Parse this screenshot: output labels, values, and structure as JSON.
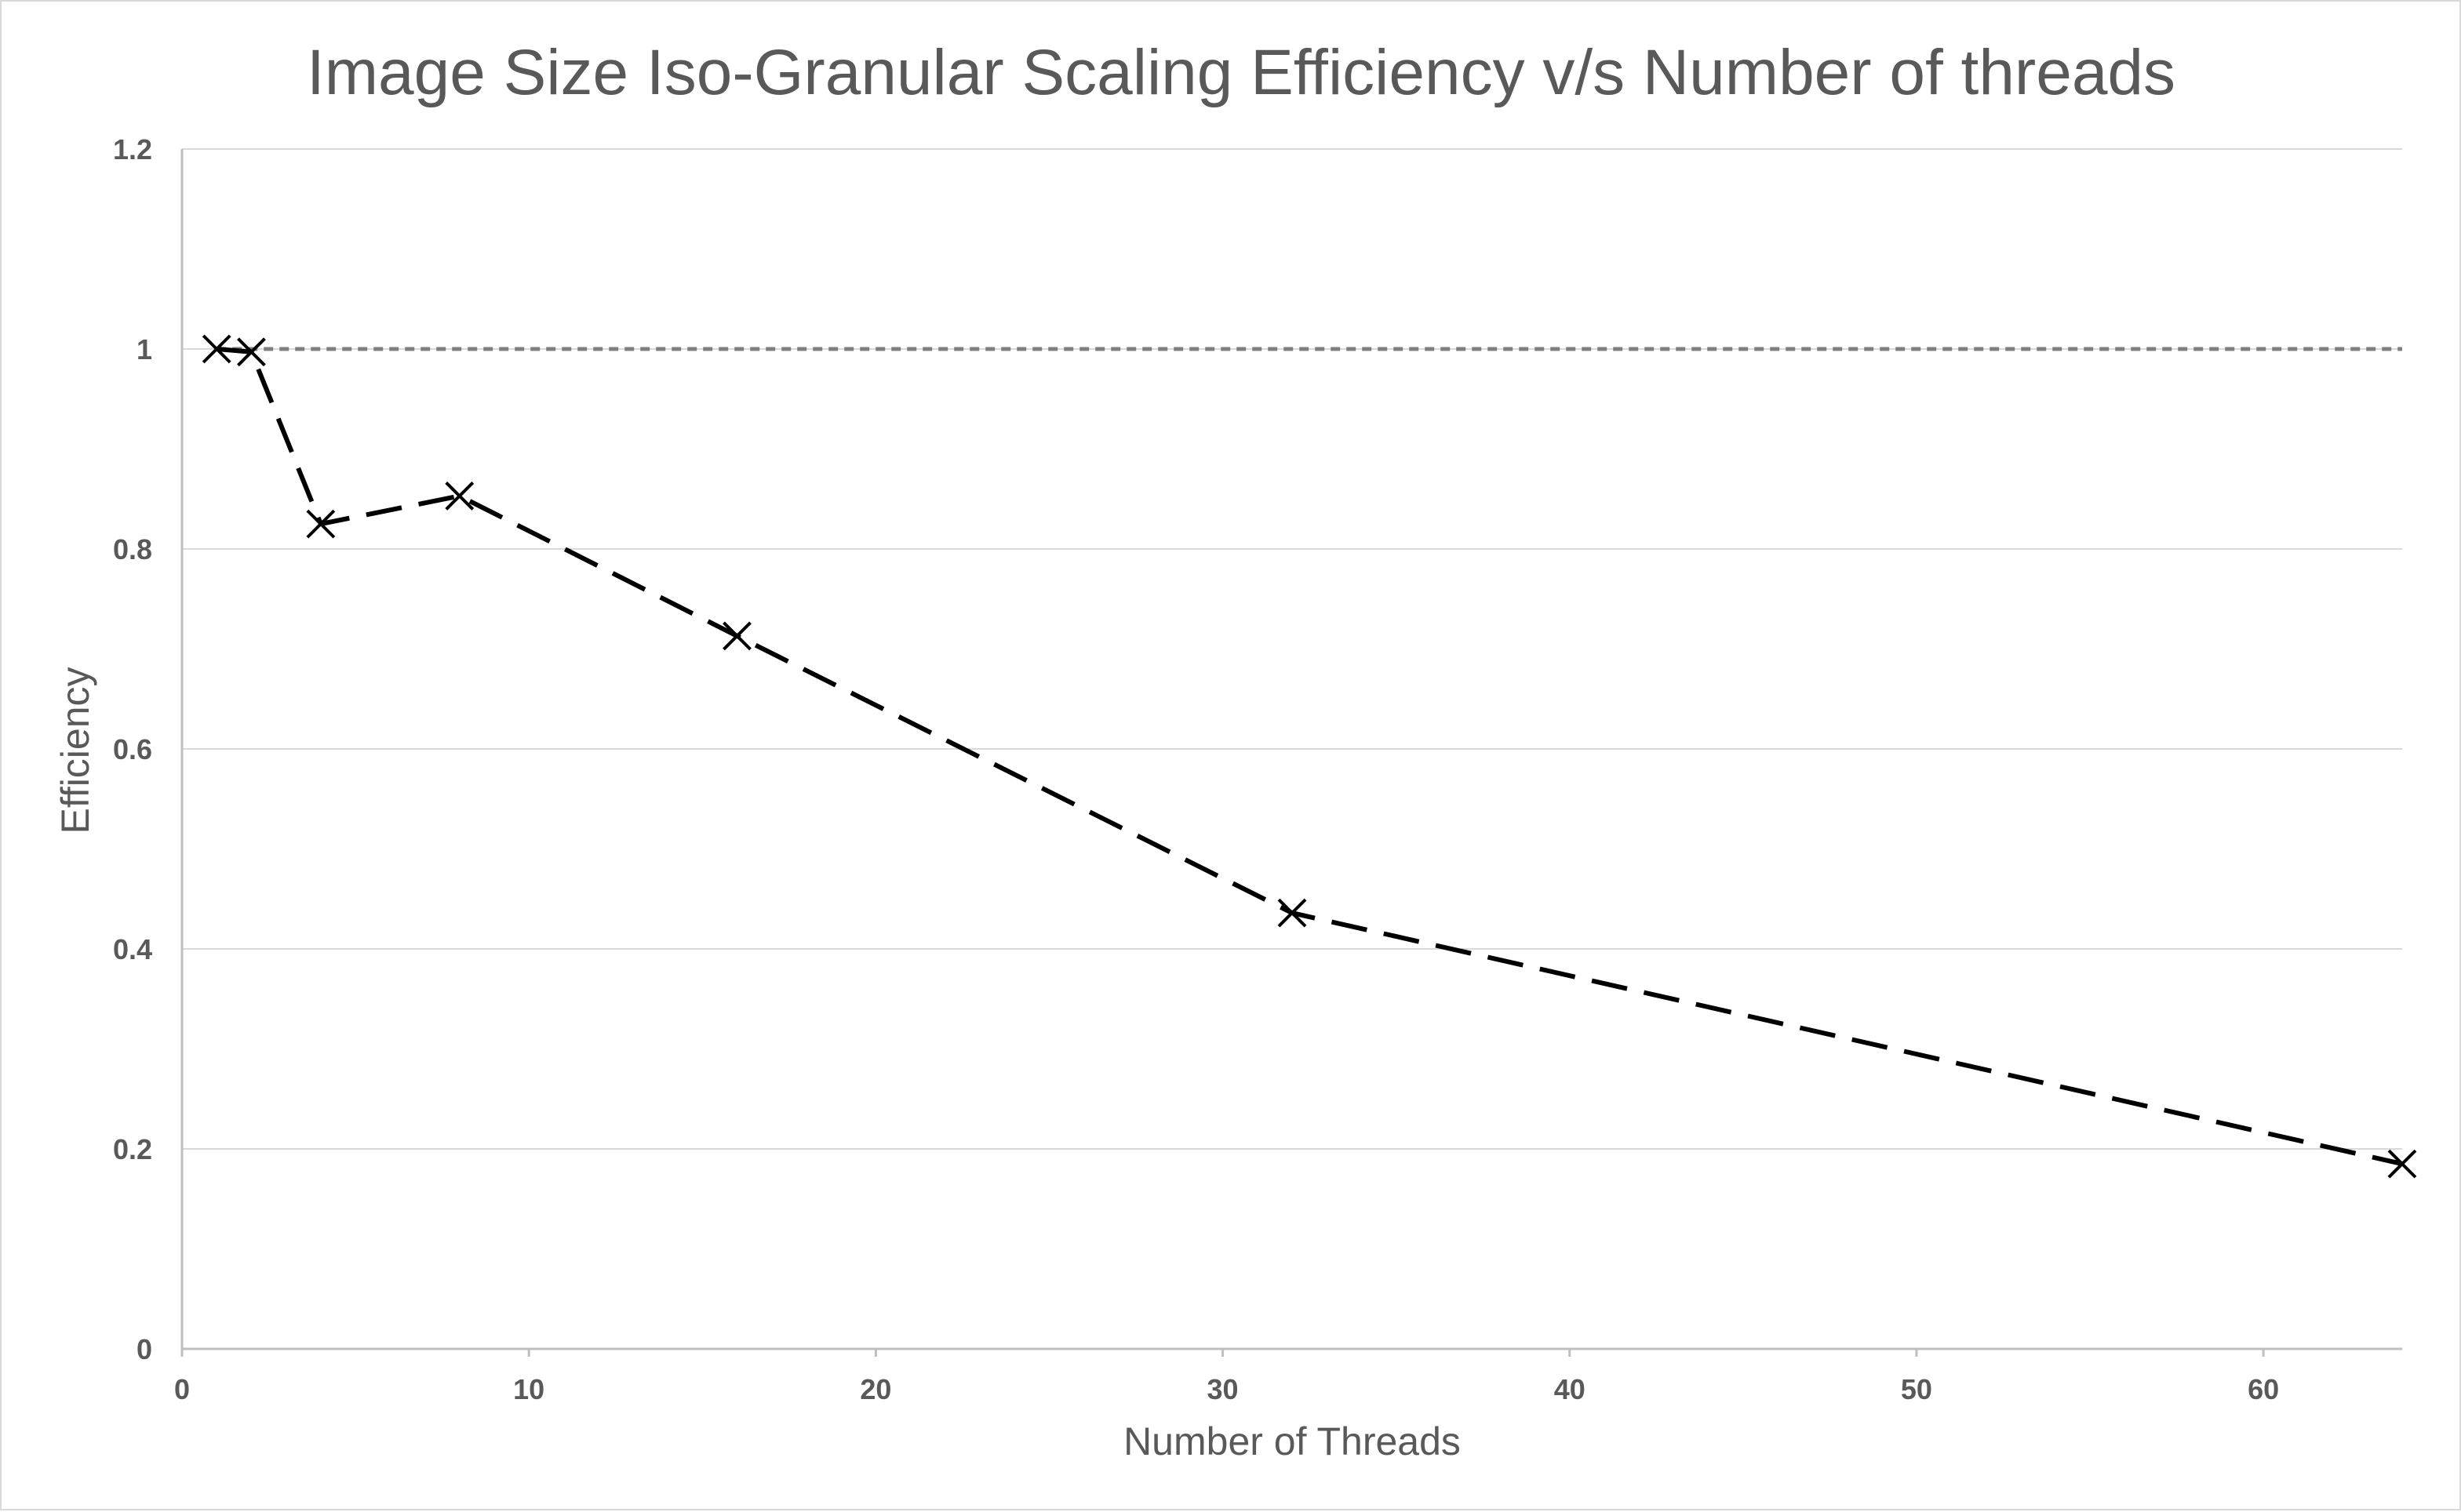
{
  "chart_data": {
    "type": "line",
    "title": "Image Size Iso-Granular Scaling Efficiency v/s Number of threads",
    "xlabel": "Number of Threads",
    "ylabel": "Efficiency",
    "xlim": [
      0,
      64
    ],
    "ylim": [
      0,
      1.2
    ],
    "x_ticks": [
      0,
      10,
      20,
      30,
      40,
      50,
      60
    ],
    "x_tick_labels": [
      "0",
      "10",
      "20",
      "30",
      "40",
      "50",
      "60"
    ],
    "y_ticks": [
      0,
      0.2,
      0.4,
      0.6,
      0.8,
      1.0,
      1.2
    ],
    "y_tick_labels": [
      "0",
      "0.2",
      "0.4",
      "0.6",
      "0.8",
      "1",
      "1.2"
    ],
    "grid": "horizontal",
    "legend": "none",
    "series": [
      {
        "x": [
          1,
          2,
          4,
          8,
          16,
          32,
          64
        ],
        "values": [
          1.0,
          0.997,
          0.825,
          0.853,
          0.713,
          0.436,
          0.185
        ],
        "color": "#000000",
        "line_style": "long-dash",
        "marker": "x"
      }
    ],
    "reference_lines": [
      {
        "y": 1.0,
        "x_range": [
          1,
          64
        ],
        "color": "#7f7f7f",
        "line_style": "short-dash"
      }
    ]
  }
}
